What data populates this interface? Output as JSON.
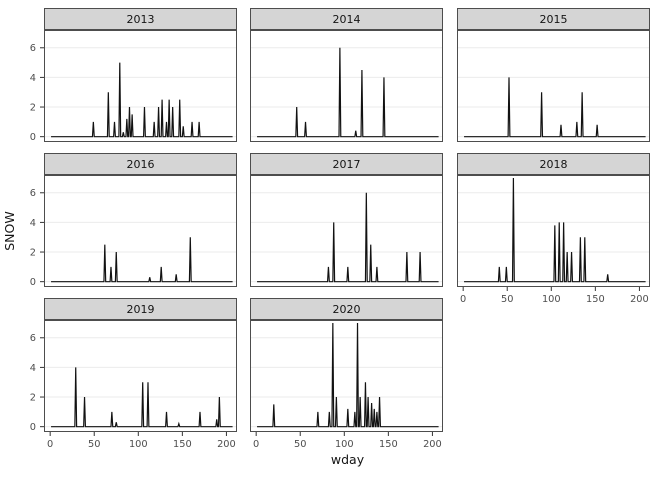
{
  "chart_data": {
    "type": "line",
    "title": "",
    "xlabel": "wday",
    "ylabel": "SNOW",
    "facet_variable": "year",
    "x_ticks": [
      0,
      50,
      100,
      150,
      200
    ],
    "y_ticks": [
      0,
      2,
      4,
      6
    ],
    "xlim": [
      -7,
      212
    ],
    "ylim": [
      -0.36,
      7.2
    ],
    "grid": "horizontal-major-only",
    "legend": "none",
    "baseline_extent": [
      1,
      207
    ],
    "facets": [
      {
        "label": "2013",
        "row": 0,
        "col": 0,
        "show_x_axis": false,
        "show_y_axis": true,
        "spikes": [
          [
            49,
            1
          ],
          [
            66,
            3
          ],
          [
            73,
            1
          ],
          [
            79,
            5
          ],
          [
            83,
            0.3
          ],
          [
            87,
            1.2
          ],
          [
            90,
            2
          ],
          [
            93,
            1.5
          ],
          [
            107,
            2
          ],
          [
            118,
            1
          ],
          [
            123,
            2
          ],
          [
            127,
            2.5
          ],
          [
            132,
            1
          ],
          [
            135,
            2.5
          ],
          [
            139,
            2
          ],
          [
            147,
            2.5
          ],
          [
            151,
            0.7
          ],
          [
            161,
            1
          ],
          [
            169,
            1
          ]
        ]
      },
      {
        "label": "2014",
        "row": 0,
        "col": 1,
        "show_x_axis": false,
        "show_y_axis": false,
        "spikes": [
          [
            46,
            2
          ],
          [
            56,
            1
          ],
          [
            95,
            6
          ],
          [
            113,
            0.4
          ],
          [
            120,
            4.5
          ],
          [
            145,
            4
          ]
        ]
      },
      {
        "label": "2015",
        "row": 0,
        "col": 2,
        "show_x_axis": false,
        "show_y_axis": false,
        "spikes": [
          [
            52,
            4
          ],
          [
            89,
            3
          ],
          [
            111,
            0.8
          ],
          [
            129,
            1
          ],
          [
            135,
            3
          ],
          [
            152,
            0.8
          ]
        ]
      },
      {
        "label": "2016",
        "row": 1,
        "col": 0,
        "show_x_axis": false,
        "show_y_axis": true,
        "spikes": [
          [
            62,
            2.5
          ],
          [
            69,
            1
          ],
          [
            75,
            2
          ],
          [
            113,
            0.3
          ],
          [
            126,
            1
          ],
          [
            143,
            0.5
          ],
          [
            159,
            3
          ]
        ]
      },
      {
        "label": "2017",
        "row": 1,
        "col": 1,
        "show_x_axis": false,
        "show_y_axis": false,
        "spikes": [
          [
            82,
            1
          ],
          [
            88,
            4
          ],
          [
            104,
            1
          ],
          [
            125,
            6
          ],
          [
            130,
            2.5
          ],
          [
            137,
            1
          ],
          [
            171,
            2
          ],
          [
            186,
            2
          ]
        ]
      },
      {
        "label": "2018",
        "row": 1,
        "col": 2,
        "show_x_axis": true,
        "show_y_axis": false,
        "spikes": [
          [
            41,
            1
          ],
          [
            49,
            1
          ],
          [
            57,
            7
          ],
          [
            104,
            3.8
          ],
          [
            109,
            4
          ],
          [
            114,
            4
          ],
          [
            118,
            2
          ],
          [
            123,
            2
          ],
          [
            133,
            3
          ],
          [
            138,
            3
          ],
          [
            164,
            0.5
          ]
        ]
      },
      {
        "label": "2019",
        "row": 2,
        "col": 0,
        "show_x_axis": true,
        "show_y_axis": true,
        "spikes": [
          [
            29,
            4
          ],
          [
            39,
            2
          ],
          [
            70,
            1
          ],
          [
            75,
            0.3
          ],
          [
            105,
            3
          ],
          [
            111,
            3
          ],
          [
            132,
            1
          ],
          [
            146,
            0.2
          ],
          [
            170,
            1
          ],
          [
            189,
            0.5
          ],
          [
            192,
            2
          ]
        ]
      },
      {
        "label": "2020",
        "row": 2,
        "col": 1,
        "show_x_axis": true,
        "show_y_axis": false,
        "spikes": [
          [
            20,
            1.5
          ],
          [
            70,
            1
          ],
          [
            83,
            1
          ],
          [
            87,
            7
          ],
          [
            91,
            2
          ],
          [
            104,
            1.2
          ],
          [
            112,
            1
          ],
          [
            115,
            7
          ],
          [
            118,
            2
          ],
          [
            124,
            3
          ],
          [
            127,
            2
          ],
          [
            131,
            1.6
          ],
          [
            134,
            1.2
          ],
          [
            137,
            1
          ],
          [
            140,
            2
          ]
        ]
      }
    ]
  },
  "style": {
    "page_bg": "#ffffff",
    "panel_bg": "#ffffff",
    "strip_bg": "#d5d5d5",
    "strip_border": "#4d4d4d",
    "panel_border": "#4d4d4d",
    "grid_color": "#ebebeb",
    "line_color": "#121212",
    "tick_color": "#333333",
    "axis_text_color": "#4d4d4d",
    "axis_title_color": "#141414"
  }
}
